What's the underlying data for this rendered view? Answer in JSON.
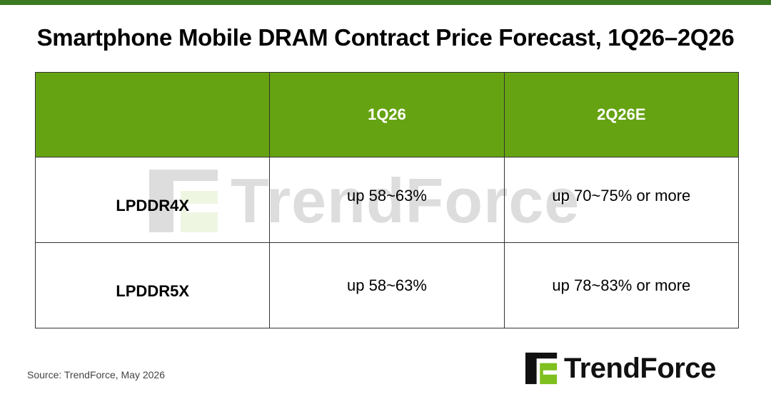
{
  "title": "Smartphone Mobile DRAM Contract Price Forecast, 1Q26–2Q26",
  "chart_data": {
    "type": "table",
    "title": "Smartphone Mobile DRAM Contract Price Forecast, 1Q26–2Q26",
    "columns": [
      "",
      "1Q26",
      "2Q26E"
    ],
    "rows": [
      {
        "label": "LPDDR4X",
        "values": [
          "up 58~63%",
          "up 70~75% or more"
        ]
      },
      {
        "label": "LPDDR5X",
        "values": [
          "up 58~63%",
          "up 78~83% or more"
        ]
      }
    ]
  },
  "source": "Source: TrendForce, May 2026",
  "logo": {
    "text": "TrendForce",
    "icon": "trendforce-logo-icon"
  },
  "watermark": {
    "text": "TrendForce",
    "icon": "trendforce-logo-icon"
  },
  "colors": {
    "top_bar": "#3c7a22",
    "header_fill": "#66a312",
    "logo_green": "#7fbf1e"
  }
}
